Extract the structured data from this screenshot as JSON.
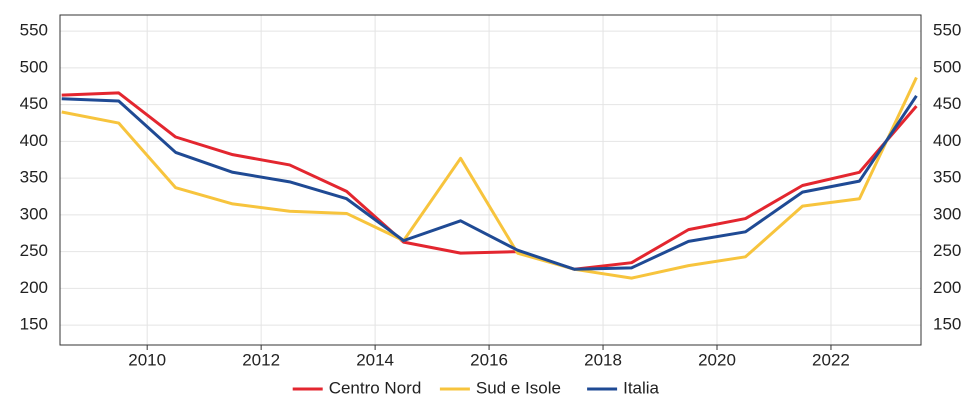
{
  "chart_data": {
    "type": "line",
    "x": [
      2008.5,
      2009.5,
      2010.5,
      2011.5,
      2012.5,
      2013.5,
      2014.5,
      2015.5,
      2016.5,
      2017.5,
      2018.5,
      2019.5,
      2020.5,
      2021.5,
      2022.5,
      2023.5
    ],
    "series": [
      {
        "name": "Centro Nord",
        "color": "#e3262f",
        "values": [
          463,
          466,
          406,
          382,
          368,
          332,
          263,
          248,
          250,
          226,
          235,
          280,
          295,
          340,
          358,
          448
        ]
      },
      {
        "name": "Sud e Isole",
        "color": "#f7c43d",
        "values": [
          440,
          425,
          337,
          315,
          305,
          302,
          265,
          377,
          248,
          226,
          214,
          231,
          243,
          312,
          322,
          487
        ]
      },
      {
        "name": "Italia",
        "color": "#1f4a94",
        "values": [
          458,
          455,
          385,
          358,
          345,
          322,
          265,
          292,
          252,
          226,
          228,
          264,
          277,
          331,
          346,
          462
        ]
      }
    ],
    "xlim": [
      2008.47,
      2023.58
    ],
    "xticks": [
      2010,
      2012,
      2014,
      2016,
      2018,
      2020,
      2022
    ],
    "ylim": [
      123,
      572
    ],
    "yticks": [
      150,
      200,
      250,
      300,
      350,
      400,
      450,
      500,
      550
    ],
    "y2lim": [
      123,
      572
    ],
    "y2ticks": [
      150,
      200,
      250,
      300,
      350,
      400,
      450,
      500,
      550
    ],
    "grid": true,
    "legend": "bottom"
  }
}
